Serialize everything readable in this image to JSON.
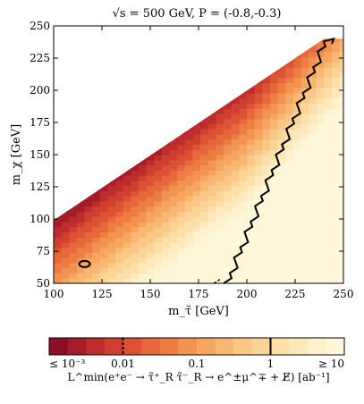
{
  "chart_data": {
    "type": "heatmap",
    "title": "√s = 500 GeV, P = (-0.8,-0.3)",
    "xlabel": "m_τ̃ [GeV]",
    "ylabel": "m_χ [GeV]",
    "xlim": [
      100,
      250
    ],
    "ylim": [
      50,
      250
    ],
    "x_ticks": [
      100,
      125,
      150,
      175,
      200,
      225,
      250
    ],
    "y_ticks": [
      50,
      75,
      100,
      125,
      150,
      175,
      200,
      225,
      250
    ],
    "grid": false,
    "allowed_region": "m_χ < m_τ̃",
    "colorbar": {
      "orientation": "horizontal",
      "scale": "log",
      "range": [
        0.001,
        10
      ],
      "tick_labels": [
        "≤ 10⁻³",
        "0.01",
        "0.1",
        "1",
        "≥ 10"
      ],
      "label": "L^min(e⁺e⁻ → τ̃⁺_R τ̃⁻_R → e^±μ^∓ + E̸) [ab⁻¹]",
      "levels": [
        0.001,
        0.00178,
        0.00316,
        0.00562,
        0.01,
        0.0178,
        0.0316,
        0.0562,
        0.1,
        0.178,
        0.316,
        0.562,
        1,
        1.78,
        3.16,
        5.62,
        10
      ],
      "colors": [
        "#8b0f24",
        "#a51d2a",
        "#bd2d2c",
        "#cf3e2f",
        "#dd5234",
        "#e7683b",
        "#ee7d44",
        "#f39352",
        "#f6a661",
        "#f8b872",
        "#fac885",
        "#fbd598",
        "#fce0aa",
        "#fde9bb",
        "#fef1cb",
        "#fff7da"
      ],
      "marked_levels": [
        0.01,
        1
      ]
    },
    "contours": [
      {
        "level": 1,
        "style": "solid",
        "label": "L = 1 ab⁻¹"
      },
      {
        "level": 0.01,
        "style": "dashed",
        "label": "L = 0.01 ab⁻¹"
      }
    ]
  }
}
